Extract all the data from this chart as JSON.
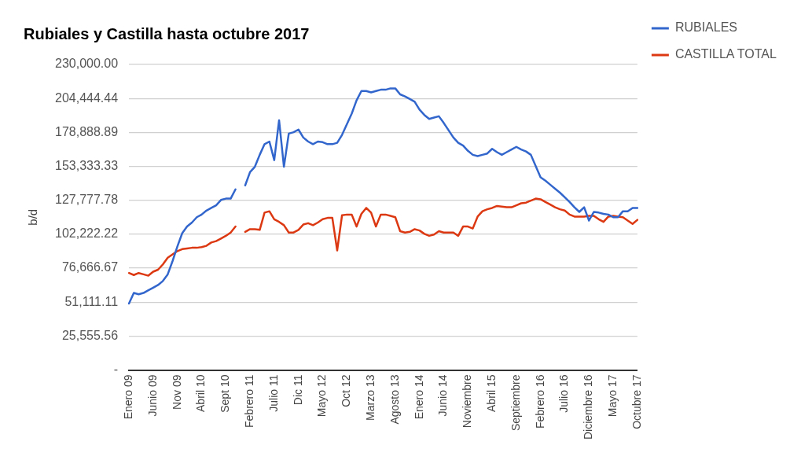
{
  "chart_data": {
    "type": "line",
    "title": "Rubiales y Castilla hasta octubre 2017",
    "ylabel": "b/d",
    "categories": [
      "Enero 09",
      null,
      null,
      null,
      null,
      "Junio 09",
      null,
      null,
      null,
      null,
      "Nov 09",
      null,
      null,
      null,
      null,
      "Abril 10",
      null,
      null,
      null,
      null,
      "Sept 10",
      null,
      null,
      null,
      null,
      "Febrero 11",
      null,
      null,
      null,
      null,
      "Julio 11",
      null,
      null,
      null,
      null,
      "Dic 11",
      null,
      null,
      null,
      null,
      "Mayo 12",
      null,
      null,
      null,
      null,
      "Oct 12",
      null,
      null,
      null,
      null,
      "Marzo 13",
      null,
      null,
      null,
      null,
      "Agosto 13",
      null,
      null,
      null,
      null,
      "Enero 14",
      null,
      null,
      null,
      null,
      "Junio 14",
      null,
      null,
      null,
      null,
      "Noviembre",
      null,
      null,
      null,
      null,
      "Abril 15",
      null,
      null,
      null,
      null,
      "Septiembre",
      null,
      null,
      null,
      null,
      "Febrero 16",
      null,
      null,
      null,
      null,
      "Julio 16",
      null,
      null,
      null,
      null,
      "Diciembre 16",
      null,
      null,
      null,
      null,
      "Mayo 17",
      null,
      null,
      null,
      null,
      "Octubre 17"
    ],
    "series": [
      {
        "name": "RUBIALES",
        "color": "#3366cc",
        "values": [
          50000,
          58000,
          57000,
          58000,
          60000,
          62000,
          64000,
          67000,
          72000,
          82000,
          93000,
          103000,
          108000,
          111000,
          115000,
          117000,
          120000,
          122000,
          124000,
          128000,
          129000,
          129000,
          136000,
          null,
          139000,
          149000,
          153000,
          162000,
          170000,
          172000,
          158000,
          188000,
          153000,
          178000,
          179000,
          181000,
          175000,
          172000,
          170000,
          172000,
          171500,
          170000,
          170000,
          171000,
          177000,
          185000,
          193000,
          203000,
          210000,
          210000,
          209000,
          210000,
          211000,
          211000,
          212000,
          212000,
          207500,
          206000,
          204000,
          202000,
          196000,
          192000,
          189000,
          190000,
          191000,
          186000,
          180500,
          175000,
          171000,
          169000,
          165000,
          162000,
          161000,
          162000,
          163000,
          166500,
          164000,
          162000,
          164000,
          166000,
          168000,
          166000,
          164500,
          162000,
          153500,
          145000,
          142500,
          139500,
          136500,
          133500,
          130000,
          126500,
          122500,
          119000,
          122500,
          112500,
          119000,
          118500,
          117500,
          117000,
          115000,
          115000,
          119500,
          119500,
          122000,
          122000
        ]
      },
      {
        "name": "CASTILLA TOTAL",
        "color": "#dc3912",
        "values": [
          73000,
          71500,
          73000,
          72000,
          71000,
          74000,
          75500,
          79500,
          84500,
          87000,
          89500,
          91000,
          91500,
          92000,
          92000,
          92500,
          93500,
          96000,
          97000,
          99000,
          101000,
          103500,
          108000,
          null,
          104000,
          106000,
          106000,
          105500,
          118500,
          119500,
          113500,
          111500,
          109000,
          103500,
          103500,
          105500,
          109500,
          110500,
          109000,
          111000,
          113500,
          114500,
          114500,
          90000,
          116500,
          117000,
          117000,
          108000,
          117500,
          122000,
          118500,
          108000,
          117000,
          117000,
          116000,
          115000,
          104500,
          103500,
          104000,
          106000,
          105000,
          102500,
          101000,
          102000,
          104500,
          103500,
          103500,
          103500,
          101000,
          108000,
          108000,
          106500,
          115500,
          119500,
          121000,
          122000,
          123500,
          123000,
          122500,
          122500,
          124000,
          125500,
          126000,
          127500,
          129000,
          128500,
          126500,
          124500,
          122500,
          121000,
          120000,
          117000,
          115500,
          115500,
          115500,
          116000,
          116000,
          113500,
          111500,
          115500,
          116000,
          115500,
          115000,
          112500,
          110000,
          113000
        ]
      }
    ],
    "ylim": [
      0,
      230000
    ],
    "yticks": [
      {
        "value": 0,
        "label": "-"
      },
      {
        "value": 25555.56,
        "label": "25,555.56"
      },
      {
        "value": 51111.11,
        "label": "51,111.11"
      },
      {
        "value": 76666.67,
        "label": "76,666.67"
      },
      {
        "value": 102222.22,
        "label": "102,222.22"
      },
      {
        "value": 127777.78,
        "label": "127,777.78"
      },
      {
        "value": 153333.33,
        "label": "153,333.33"
      },
      {
        "value": 178888.89,
        "label": "178,888.89"
      },
      {
        "value": 204444.44,
        "label": "204,444.44"
      },
      {
        "value": 230000,
        "label": "230,000.00"
      }
    ],
    "grid": "y",
    "legend": "top right",
    "marker": "none",
    "line_style": "solid"
  }
}
